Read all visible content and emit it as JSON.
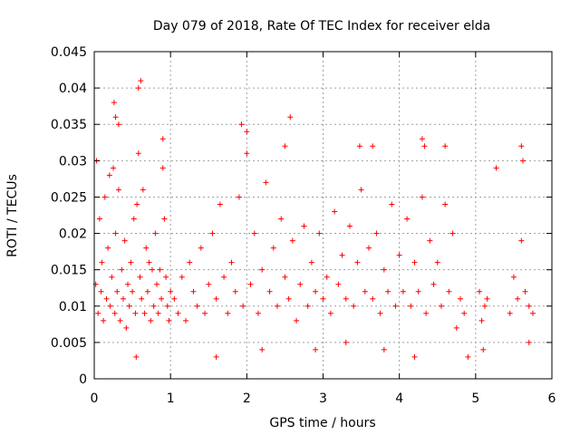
{
  "chart_data": {
    "type": "scatter",
    "title": "Day 079 of 2018, Rate Of TEC Index for receiver elda",
    "xlabel": "GPS time / hours",
    "ylabel": "ROTI / TECUs",
    "xlim": [
      0,
      6
    ],
    "ylim": [
      0,
      0.045
    ],
    "x_ticks": [
      "0",
      "1",
      "2",
      "3",
      "4",
      "5",
      "6"
    ],
    "y_ticks": [
      "0",
      "0.005",
      "0.01",
      "0.015",
      "0.02",
      "0.025",
      "0.03",
      "0.035",
      "0.04",
      "0.045"
    ],
    "grid": true,
    "marker": "+",
    "color": "#ff0000",
    "series": [
      {
        "name": "ROTI",
        "x": [
          0.02,
          0.03,
          0.05,
          0.07,
          0.09,
          0.1,
          0.12,
          0.14,
          0.16,
          0.18,
          0.2,
          0.21,
          0.23,
          0.25,
          0.27,
          0.28,
          0.3,
          0.32,
          0.34,
          0.36,
          0.38,
          0.4,
          0.42,
          0.44,
          0.46,
          0.48,
          0.5,
          0.52,
          0.54,
          0.56,
          0.58,
          0.6,
          0.62,
          0.64,
          0.66,
          0.68,
          0.7,
          0.72,
          0.74,
          0.76,
          0.78,
          0.8,
          0.82,
          0.84,
          0.86,
          0.88,
          0.9,
          0.92,
          0.94,
          0.96,
          0.98,
          1.0,
          1.05,
          1.1,
          1.15,
          1.2,
          1.25,
          1.3,
          1.35,
          1.4,
          1.45,
          1.5,
          1.55,
          1.6,
          1.65,
          1.7,
          1.75,
          1.8,
          1.85,
          1.9,
          1.95,
          2.0,
          2.05,
          2.1,
          2.15,
          2.2,
          2.25,
          2.3,
          2.35,
          2.4,
          2.45,
          2.5,
          2.55,
          2.6,
          2.65,
          2.7,
          2.75,
          2.8,
          2.85,
          2.9,
          2.95,
          3.0,
          3.05,
          3.1,
          3.15,
          3.2,
          3.25,
          3.3,
          3.35,
          3.4,
          3.45,
          3.5,
          3.55,
          3.6,
          3.65,
          3.7,
          3.75,
          3.8,
          3.85,
          3.9,
          3.95,
          4.0,
          4.05,
          4.1,
          4.15,
          4.2,
          4.25,
          4.3,
          4.35,
          4.4,
          4.45,
          4.5,
          4.55,
          4.6,
          4.65,
          4.7,
          4.75,
          4.8,
          4.85,
          5.05,
          5.08,
          5.12,
          5.15,
          5.45,
          5.5,
          5.55,
          5.6,
          5.65,
          5.7,
          5.75,
          0.28,
          0.32,
          0.58,
          0.61,
          0.26,
          0.9,
          1.93,
          2.0,
          2.5,
          2.57,
          4.3,
          4.33,
          4.6,
          3.48,
          3.65,
          5.6,
          5.62,
          5.27,
          0.55,
          1.6,
          2.2,
          2.9,
          3.3,
          3.8,
          4.2,
          4.9,
          5.1,
          5.7
        ],
        "y": [
          0.013,
          0.03,
          0.009,
          0.022,
          0.012,
          0.016,
          0.008,
          0.025,
          0.011,
          0.018,
          0.028,
          0.01,
          0.014,
          0.029,
          0.009,
          0.02,
          0.012,
          0.026,
          0.008,
          0.015,
          0.011,
          0.019,
          0.007,
          0.013,
          0.01,
          0.016,
          0.012,
          0.022,
          0.009,
          0.024,
          0.031,
          0.014,
          0.011,
          0.026,
          0.009,
          0.018,
          0.012,
          0.016,
          0.008,
          0.015,
          0.01,
          0.02,
          0.013,
          0.009,
          0.015,
          0.011,
          0.029,
          0.022,
          0.014,
          0.01,
          0.008,
          0.012,
          0.011,
          0.009,
          0.014,
          0.008,
          0.016,
          0.012,
          0.01,
          0.018,
          0.009,
          0.013,
          0.02,
          0.011,
          0.024,
          0.014,
          0.009,
          0.016,
          0.012,
          0.025,
          0.01,
          0.031,
          0.013,
          0.02,
          0.009,
          0.015,
          0.027,
          0.012,
          0.018,
          0.01,
          0.022,
          0.014,
          0.011,
          0.019,
          0.008,
          0.013,
          0.021,
          0.01,
          0.016,
          0.012,
          0.02,
          0.011,
          0.014,
          0.009,
          0.023,
          0.013,
          0.017,
          0.011,
          0.021,
          0.01,
          0.016,
          0.026,
          0.012,
          0.018,
          0.011,
          0.02,
          0.009,
          0.015,
          0.012,
          0.024,
          0.01,
          0.017,
          0.012,
          0.022,
          0.01,
          0.016,
          0.012,
          0.025,
          0.009,
          0.019,
          0.013,
          0.016,
          0.01,
          0.024,
          0.012,
          0.02,
          0.007,
          0.011,
          0.009,
          0.012,
          0.008,
          0.01,
          0.011,
          0.009,
          0.014,
          0.011,
          0.019,
          0.012,
          0.01,
          0.009,
          0.036,
          0.035,
          0.04,
          0.041,
          0.038,
          0.033,
          0.035,
          0.034,
          0.032,
          0.036,
          0.033,
          0.032,
          0.032,
          0.032,
          0.032,
          0.032,
          0.03,
          0.029,
          0.003,
          0.003,
          0.004,
          0.004,
          0.005,
          0.004,
          0.003,
          0.003,
          0.004,
          0.005
        ]
      }
    ]
  }
}
